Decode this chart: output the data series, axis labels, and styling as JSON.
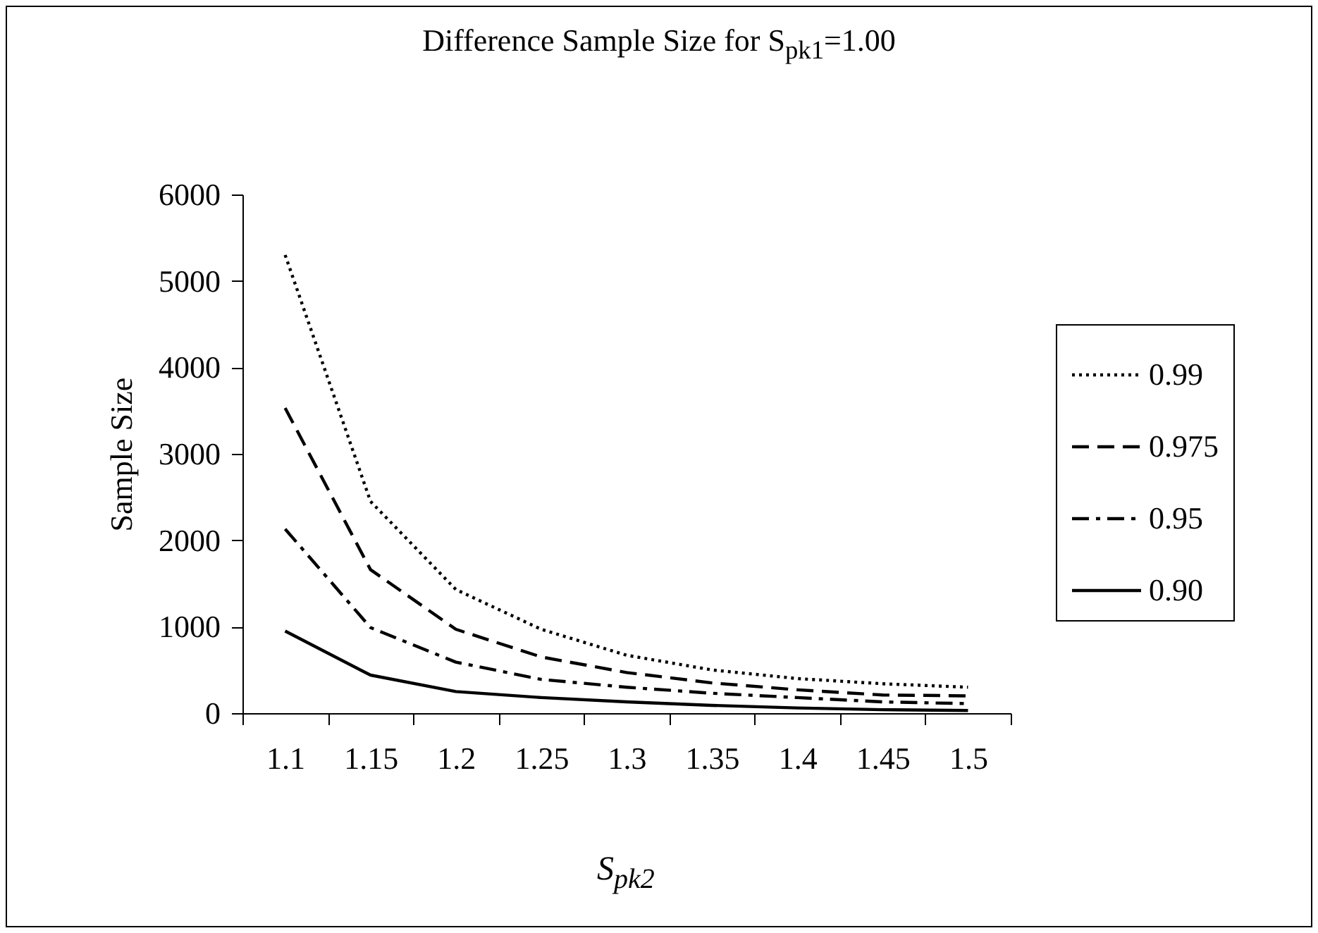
{
  "chart_data": {
    "type": "line",
    "title": "Difference Sample Size for S$_{pk1}$=1.00",
    "xlabel": "S$_{pk2}$",
    "ylabel": "Sample Size",
    "categories": [
      "1.1",
      "1.15",
      "1.2",
      "1.25",
      "1.3",
      "1.35",
      "1.4",
      "1.45",
      "1.5"
    ],
    "ylim": [
      0,
      6000
    ],
    "yticks": [
      0,
      1000,
      2000,
      3000,
      4000,
      5000,
      6000
    ],
    "legend": "right",
    "series": [
      {
        "name": "0.99",
        "color": "#000000",
        "line_style": "dotted",
        "values": [
          5300,
          2450,
          1430,
          970,
          670,
          500,
          400,
          340,
          300
        ]
      },
      {
        "name": "0.975",
        "color": "#000000",
        "line_style": "dashed",
        "values": [
          3530,
          1660,
          970,
          650,
          470,
          350,
          270,
          210,
          200
        ]
      },
      {
        "name": "0.95",
        "color": "#000000",
        "line_style": "dashdot",
        "values": [
          2130,
          990,
          590,
          390,
          300,
          230,
          180,
          130,
          110
        ]
      },
      {
        "name": "0.90",
        "color": "#000000",
        "line_style": "solid",
        "values": [
          950,
          440,
          250,
          180,
          130,
          90,
          60,
          40,
          30
        ]
      }
    ]
  }
}
